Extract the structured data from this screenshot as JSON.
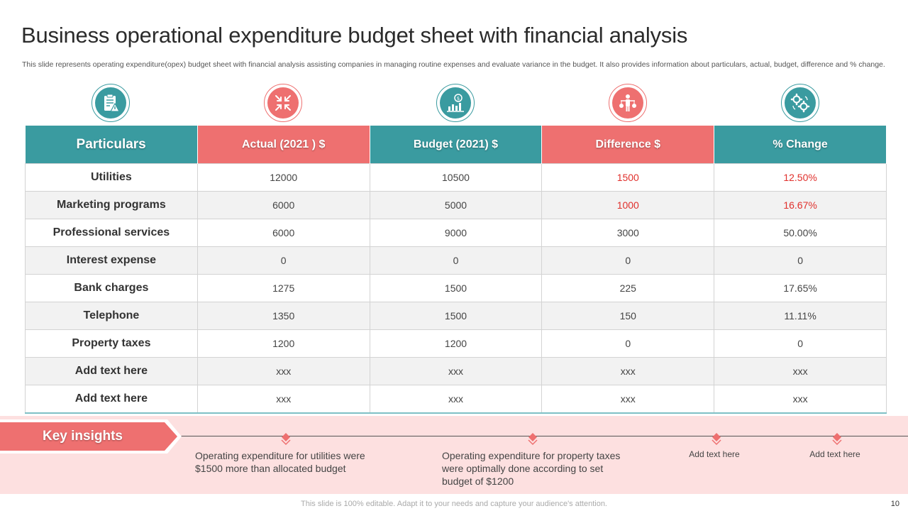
{
  "slide": {
    "title": "Business operational expenditure budget sheet with financial analysis",
    "subtitle": "This slide represents operating expenditure(opex) budget sheet with financial analysis assisting companies in managing routine expenses and evaluate variance in the budget. It also provides information about particulars, actual, budget, difference and % change.",
    "footer": "This slide is 100% editable. Adapt it to your needs and capture your audience's attention.",
    "page_number": "10"
  },
  "colors": {
    "teal": "#3a9ba0",
    "coral": "#ee7070",
    "alert_red": "#e0302c",
    "insight_bg": "#fde0e0"
  },
  "icons": [
    "clipboard-warning-icon",
    "shrink-arrows-icon",
    "growth-chart-icon",
    "balance-person-icon",
    "gears-icon"
  ],
  "table": {
    "headers": [
      "Particulars",
      "Actual (2021 ) $",
      "Budget (2021) $",
      "Difference $",
      "% Change"
    ],
    "rows": [
      {
        "particular": "Utilities",
        "actual": "12000",
        "budget": "10500",
        "difference": "1500",
        "change": "12.50%",
        "highlight": true
      },
      {
        "particular": "Marketing programs",
        "actual": "6000",
        "budget": "5000",
        "difference": "1000",
        "change": "16.67%",
        "highlight": true
      },
      {
        "particular": "Professional services",
        "actual": "6000",
        "budget": "9000",
        "difference": "3000",
        "change": "50.00%",
        "highlight": false
      },
      {
        "particular": "Interest expense",
        "actual": "0",
        "budget": "0",
        "difference": "0",
        "change": "0",
        "highlight": false
      },
      {
        "particular": "Bank charges",
        "actual": "1275",
        "budget": "1500",
        "difference": "225",
        "change": "17.65%",
        "highlight": false
      },
      {
        "particular": "Telephone",
        "actual": "1350",
        "budget": "1500",
        "difference": "150",
        "change": "11.11%",
        "highlight": false
      },
      {
        "particular": "Property taxes",
        "actual": "1200",
        "budget": "1200",
        "difference": "0",
        "change": "0",
        "highlight": false
      },
      {
        "particular": "Add text here",
        "actual": "xxx",
        "budget": "xxx",
        "difference": "xxx",
        "change": "xxx",
        "highlight": false
      },
      {
        "particular": "Add text here",
        "actual": "xxx",
        "budget": "xxx",
        "difference": "xxx",
        "change": "xxx",
        "highlight": false
      }
    ]
  },
  "insights": {
    "label": "Key insights",
    "items": [
      "Operating expenditure for utilities were $1500 more than allocated budget",
      "Operating expenditure for property taxes were optimally done according to set budget of $1200",
      "Add text here",
      "Add text here"
    ]
  }
}
